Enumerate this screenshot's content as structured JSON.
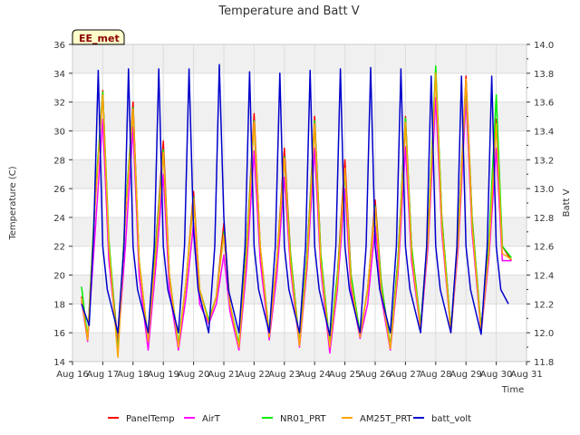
{
  "chart_data": {
    "type": "line",
    "title": "Temperature and Batt V",
    "site_label": "EE_met",
    "xlabel": "Time",
    "ylabel": "Temperature (C)",
    "y2label": "Batt V",
    "x_ticks": [
      "Aug 16",
      "Aug 17",
      "Aug 18",
      "Aug 19",
      "Aug 20",
      "Aug 21",
      "Aug 22",
      "Aug 23",
      "Aug 24",
      "Aug 25",
      "Aug 26",
      "Aug 27",
      "Aug 28",
      "Aug 29",
      "Aug 30",
      "Aug 31"
    ],
    "xlim": [
      16,
      31
    ],
    "ylim": [
      14,
      36
    ],
    "y_ticks": [
      14,
      16,
      18,
      20,
      22,
      24,
      26,
      28,
      30,
      32,
      34,
      36
    ],
    "y2lim": [
      11.8,
      14.0
    ],
    "y2_ticks": [
      "11.8",
      "12.0",
      "12.2",
      "12.4",
      "12.6",
      "12.8",
      "13.0",
      "13.2",
      "13.4",
      "13.6",
      "13.8",
      "14.0"
    ],
    "grid": true,
    "shaded_bands": true,
    "legend_position": "bottom",
    "x_unit": "day of August",
    "daily_extremes": {
      "day": [
        16,
        17,
        18,
        19,
        20,
        21,
        22,
        23,
        24,
        25,
        26,
        27,
        28,
        29,
        30
      ],
      "min_temp": [
        18.5,
        15.2,
        14.4,
        15.4,
        14.8,
        16.5,
        14.8,
        15.8,
        15.1,
        14.8,
        15.8,
        14.8,
        16.4,
        16.0,
        16.2
      ],
      "max_temp_panel": [
        null,
        32.8,
        32.0,
        29.3,
        25.8,
        23.6,
        31.2,
        28.8,
        31.0,
        28.0,
        25.2,
        31.0,
        34.2,
        33.8,
        30.8
      ],
      "max_temp_airt": [
        null,
        30.8,
        30.3,
        27.0,
        23.6,
        21.4,
        28.6,
        26.8,
        28.8,
        26.0,
        23.4,
        28.9,
        32.3,
        32.3,
        28.8
      ],
      "max_batt_volt": [
        null,
        13.82,
        13.83,
        13.83,
        13.83,
        13.86,
        13.81,
        13.8,
        13.82,
        13.83,
        13.84,
        13.83,
        13.78,
        13.78,
        13.78
      ],
      "min_batt_volt": [
        12.2,
        12.0,
        12.0,
        12.0,
        12.0,
        12.0,
        12.0,
        12.0,
        12.0,
        11.98,
        12.0,
        12.0,
        12.0,
        11.99,
        12.0
      ]
    },
    "series": [
      {
        "name": "PanelTemp",
        "color": "#ff0000",
        "axis": "left",
        "x": [
          16.3,
          16.5,
          16.75,
          17.0,
          17.2,
          17.5,
          17.75,
          18.0,
          18.2,
          18.5,
          18.75,
          19.0,
          19.2,
          19.5,
          19.75,
          20.0,
          20.2,
          20.5,
          20.75,
          21.0,
          21.2,
          21.5,
          21.75,
          22.0,
          22.2,
          22.5,
          22.75,
          23.0,
          23.2,
          23.5,
          23.75,
          24.0,
          24.2,
          24.5,
          24.75,
          25.0,
          25.2,
          25.5,
          25.75,
          26.0,
          26.2,
          26.5,
          26.75,
          27.0,
          27.2,
          27.5,
          27.75,
          28.0,
          28.2,
          28.5,
          28.75,
          29.0,
          29.2,
          29.5,
          29.75,
          30.0,
          30.2,
          30.5
        ],
        "y": [
          18.5,
          15.5,
          25.0,
          32.8,
          22.0,
          15.2,
          24.0,
          32.0,
          21.0,
          15.4,
          22.0,
          29.3,
          20.0,
          15.0,
          19.5,
          25.8,
          19.0,
          16.8,
          18.5,
          23.6,
          18.0,
          15.0,
          22.0,
          31.2,
          22.0,
          15.8,
          21.0,
          28.8,
          21.5,
          15.2,
          21.5,
          31.0,
          21.5,
          15.0,
          20.0,
          28.0,
          20.0,
          15.8,
          19.0,
          25.2,
          19.5,
          15.0,
          21.0,
          31.0,
          22.0,
          16.4,
          23.0,
          34.2,
          24.0,
          16.2,
          23.0,
          33.8,
          24.0,
          16.2,
          22.0,
          30.8,
          22.0,
          21.0
        ]
      },
      {
        "name": "AirT",
        "color": "#ff00ff",
        "axis": "left",
        "x": [
          16.3,
          16.5,
          16.75,
          17.0,
          17.2,
          17.5,
          17.75,
          18.0,
          18.2,
          18.5,
          18.75,
          19.0,
          19.2,
          19.5,
          19.75,
          20.0,
          20.2,
          20.5,
          20.75,
          21.0,
          21.2,
          21.5,
          21.75,
          22.0,
          22.2,
          22.5,
          22.75,
          23.0,
          23.2,
          23.5,
          23.75,
          24.0,
          24.2,
          24.5,
          24.75,
          25.0,
          25.2,
          25.5,
          25.75,
          26.0,
          26.2,
          26.5,
          26.75,
          27.0,
          27.2,
          27.5,
          27.75,
          28.0,
          28.2,
          28.5,
          28.75,
          29.0,
          29.2,
          29.5,
          29.75,
          30.0,
          30.2,
          30.5
        ],
        "y": [
          18.2,
          15.4,
          23.0,
          30.8,
          21.0,
          15.0,
          22.0,
          30.3,
          20.0,
          14.8,
          20.5,
          27.0,
          19.0,
          14.8,
          18.5,
          23.6,
          18.0,
          16.6,
          18.0,
          21.4,
          17.5,
          14.8,
          20.5,
          28.6,
          21.0,
          15.5,
          20.0,
          26.8,
          20.5,
          15.0,
          20.5,
          28.8,
          20.5,
          14.6,
          19.0,
          26.0,
          19.0,
          15.6,
          18.0,
          23.4,
          18.5,
          14.8,
          20.0,
          28.9,
          21.0,
          16.2,
          22.0,
          32.3,
          23.0,
          16.0,
          22.0,
          32.3,
          23.0,
          16.0,
          21.0,
          28.8,
          21.0,
          21.0
        ]
      },
      {
        "name": "NR01_PRT",
        "color": "#00ee00",
        "axis": "left",
        "x": [
          16.3,
          16.5,
          16.75,
          17.0,
          17.2,
          17.5,
          17.75,
          18.0,
          18.2,
          18.5,
          18.75,
          19.0,
          19.2,
          19.5,
          19.75,
          20.0,
          20.2,
          20.5,
          20.75,
          21.0,
          21.2,
          21.5,
          21.75,
          22.0,
          22.2,
          22.5,
          22.75,
          23.0,
          23.2,
          23.5,
          23.75,
          24.0,
          24.2,
          24.5,
          24.75,
          25.0,
          25.2,
          25.5,
          25.75,
          26.0,
          26.2,
          26.5,
          26.75,
          27.0,
          27.2,
          27.5,
          27.75,
          28.0,
          28.2,
          28.5,
          28.75,
          29.0,
          29.2,
          29.5,
          29.75,
          30.0,
          30.2,
          30.5
        ],
        "y": [
          19.2,
          15.6,
          25.5,
          32.7,
          22.5,
          14.6,
          24.5,
          31.6,
          21.0,
          15.5,
          22.0,
          28.7,
          20.0,
          15.2,
          19.5,
          25.4,
          19.0,
          16.9,
          18.5,
          23.0,
          18.0,
          15.2,
          22.0,
          30.7,
          22.0,
          15.9,
          21.0,
          28.2,
          21.5,
          15.2,
          21.5,
          30.7,
          21.5,
          15.2,
          20.0,
          27.2,
          20.0,
          15.9,
          19.0,
          24.8,
          19.5,
          15.0,
          21.0,
          30.9,
          22.0,
          16.5,
          23.0,
          34.5,
          24.0,
          16.2,
          23.0,
          33.3,
          24.0,
          16.3,
          22.0,
          32.5,
          22.0,
          21.2
        ]
      },
      {
        "name": "AM25T_PRT",
        "color": "#ffa500",
        "axis": "left",
        "x": [
          16.3,
          16.5,
          16.75,
          17.0,
          17.2,
          17.5,
          17.75,
          18.0,
          18.2,
          18.5,
          18.75,
          19.0,
          19.2,
          19.5,
          19.75,
          20.0,
          20.2,
          20.5,
          20.75,
          21.0,
          21.2,
          21.5,
          21.75,
          22.0,
          22.2,
          22.5,
          22.75,
          23.0,
          23.2,
          23.5,
          23.75,
          24.0,
          24.2,
          24.5,
          24.75,
          25.0,
          25.2,
          25.5,
          25.75,
          26.0,
          26.2,
          26.5,
          26.75,
          27.0,
          27.2,
          27.5,
          27.75,
          28.0,
          28.2,
          28.5,
          28.75,
          29.0,
          29.2,
          29.5,
          29.75,
          30.0,
          30.2,
          30.5
        ],
        "y": [
          18.4,
          15.5,
          25.0,
          32.5,
          22.0,
          14.3,
          24.0,
          31.5,
          21.0,
          15.4,
          21.5,
          28.5,
          20.0,
          15.0,
          19.5,
          25.3,
          19.0,
          16.7,
          18.5,
          22.8,
          18.0,
          15.0,
          21.5,
          30.6,
          22.0,
          15.7,
          21.0,
          28.1,
          21.0,
          15.1,
          21.0,
          30.5,
          21.0,
          15.0,
          19.5,
          27.4,
          19.5,
          15.7,
          19.0,
          24.7,
          19.0,
          14.9,
          20.5,
          30.6,
          21.5,
          16.3,
          22.5,
          34.0,
          23.5,
          16.0,
          22.5,
          33.6,
          23.5,
          16.1,
          21.5,
          30.5,
          21.5,
          21.1
        ]
      },
      {
        "name": "batt_volt",
        "color": "#0000cc",
        "axis": "right",
        "x": [
          16.3,
          16.55,
          16.7,
          16.85,
          17.0,
          17.15,
          17.5,
          17.7,
          17.85,
          18.0,
          18.15,
          18.5,
          18.7,
          18.85,
          19.0,
          19.15,
          19.5,
          19.7,
          19.85,
          20.0,
          20.15,
          20.5,
          20.7,
          20.85,
          21.0,
          21.15,
          21.5,
          21.7,
          21.85,
          22.0,
          22.15,
          22.5,
          22.7,
          22.85,
          23.0,
          23.15,
          23.5,
          23.7,
          23.85,
          24.0,
          24.15,
          24.5,
          24.7,
          24.85,
          25.0,
          25.15,
          25.5,
          25.7,
          25.85,
          26.0,
          26.15,
          26.5,
          26.7,
          26.85,
          27.0,
          27.15,
          27.5,
          27.7,
          27.85,
          28.0,
          28.15,
          28.5,
          28.7,
          28.85,
          29.0,
          29.15,
          29.5,
          29.7,
          29.85,
          30.0,
          30.15,
          30.4
        ],
        "y": [
          12.2,
          12.05,
          12.7,
          13.82,
          12.6,
          12.3,
          12.0,
          12.6,
          13.83,
          12.6,
          12.3,
          12.0,
          12.6,
          13.83,
          12.6,
          12.3,
          12.0,
          12.6,
          13.83,
          12.7,
          12.3,
          12.0,
          12.6,
          13.86,
          12.8,
          12.3,
          12.0,
          12.6,
          13.81,
          12.6,
          12.3,
          12.0,
          12.6,
          13.8,
          12.6,
          12.3,
          12.0,
          12.6,
          13.82,
          12.6,
          12.3,
          11.98,
          12.6,
          13.83,
          12.6,
          12.3,
          12.0,
          12.6,
          13.84,
          12.6,
          12.3,
          12.0,
          12.6,
          13.83,
          12.6,
          12.3,
          12.0,
          12.6,
          13.78,
          12.6,
          12.3,
          12.0,
          12.6,
          13.78,
          12.6,
          12.3,
          11.99,
          12.6,
          13.78,
          12.6,
          12.3,
          12.2
        ]
      }
    ]
  }
}
